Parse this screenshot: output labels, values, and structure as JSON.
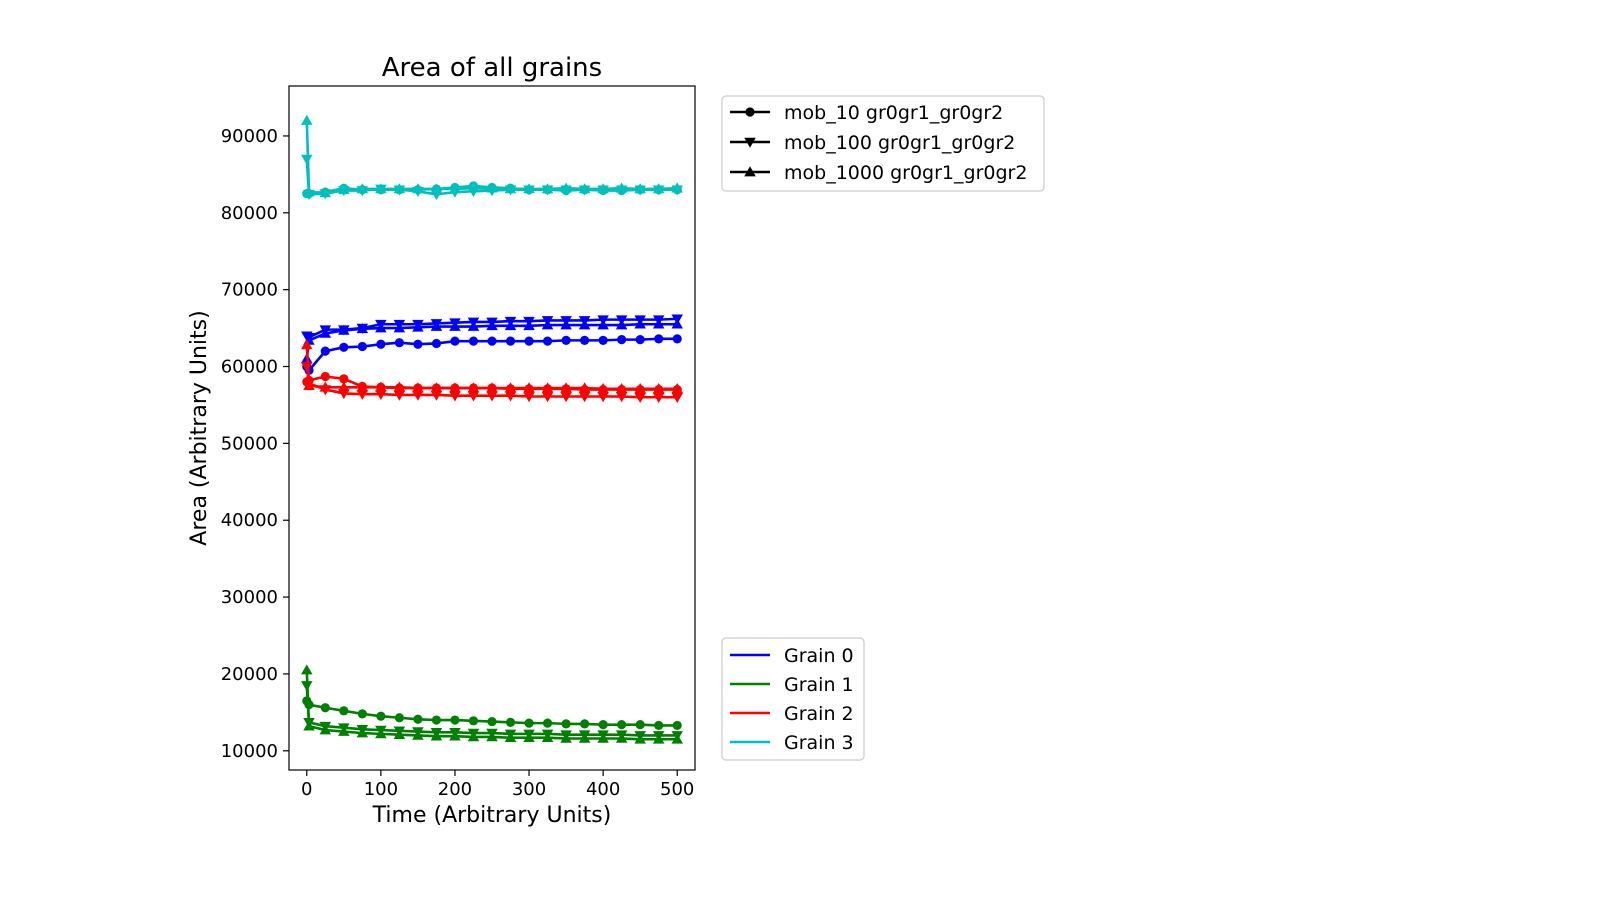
{
  "chart_data": {
    "type": "line",
    "title": "Area of all grains",
    "xlabel": "Time (Arbitrary Units)",
    "ylabel": "Area (Arbitrary Units)",
    "xlim": [
      -24,
      524
    ],
    "ylim": [
      7500,
      96500
    ],
    "xticks": [
      0,
      100,
      200,
      300,
      400,
      500
    ],
    "yticks": [
      10000,
      20000,
      30000,
      40000,
      50000,
      60000,
      70000,
      80000,
      90000
    ],
    "grid": false,
    "grain_legend_placement": "outside right, lower",
    "mobility_legend_placement": "outside right, upper",
    "grain_legend": [
      {
        "label": "Grain 0",
        "color": "#0000ff"
      },
      {
        "label": "Grain 1",
        "color": "#008000"
      },
      {
        "label": "Grain 2",
        "color": "#ff0000"
      },
      {
        "label": "Grain 3",
        "color": "#00bfbf"
      }
    ],
    "mobility_legend": [
      {
        "label": "mob_10 gr0gr1_gr0gr2",
        "marker": "circle"
      },
      {
        "label": "mob_100 gr0gr1_gr0gr2",
        "marker": "triangle-down"
      },
      {
        "label": "mob_1000 gr0gr1_gr0gr2",
        "marker": "triangle-up"
      }
    ],
    "x": [
      0,
      3,
      25,
      50,
      75,
      100,
      125,
      150,
      175,
      200,
      225,
      250,
      275,
      300,
      325,
      350,
      375,
      400,
      425,
      450,
      475,
      500
    ],
    "series": [
      {
        "grain": 0,
        "marker": "circle",
        "color": "#0000ff",
        "values": [
          60000,
          59500,
          62000,
          62500,
          62600,
          62900,
          63100,
          62900,
          63000,
          63300,
          63300,
          63300,
          63300,
          63300,
          63300,
          63400,
          63400,
          63400,
          63500,
          63500,
          63600,
          63600
        ]
      },
      {
        "grain": 0,
        "marker": "triangle-down",
        "color": "#0000ff",
        "values": [
          64000,
          63800,
          64800,
          64800,
          65000,
          65500,
          65500,
          65500,
          65600,
          65700,
          65800,
          65800,
          65900,
          65900,
          66000,
          66000,
          66000,
          66100,
          66100,
          66100,
          66100,
          66200
        ]
      },
      {
        "grain": 0,
        "marker": "triangle-up",
        "color": "#0000ff",
        "values": [
          61000,
          63400,
          64300,
          64700,
          64900,
          65000,
          65000,
          65100,
          65200,
          65200,
          65200,
          65300,
          65300,
          65300,
          65400,
          65400,
          65400,
          65400,
          65400,
          65500,
          65500,
          65500
        ]
      },
      {
        "grain": 1,
        "marker": "circle",
        "color": "#008000",
        "values": [
          16500,
          16000,
          15600,
          15200,
          14800,
          14500,
          14300,
          14100,
          14000,
          14000,
          13900,
          13800,
          13700,
          13600,
          13600,
          13500,
          13500,
          13400,
          13400,
          13400,
          13300,
          13300
        ]
      },
      {
        "grain": 1,
        "marker": "triangle-down",
        "color": "#008000",
        "values": [
          18500,
          13700,
          13200,
          13000,
          12800,
          12700,
          12600,
          12500,
          12400,
          12400,
          12300,
          12300,
          12200,
          12200,
          12200,
          12100,
          12100,
          12100,
          12100,
          12000,
          12000,
          12000
        ]
      },
      {
        "grain": 1,
        "marker": "triangle-up",
        "color": "#008000",
        "values": [
          20500,
          13200,
          12700,
          12500,
          12300,
          12200,
          12100,
          12000,
          11900,
          11900,
          11800,
          11800,
          11700,
          11700,
          11700,
          11600,
          11600,
          11600,
          11600,
          11500,
          11500,
          11500
        ]
      },
      {
        "grain": 2,
        "marker": "circle",
        "color": "#ff0000",
        "values": [
          58000,
          58200,
          58700,
          58400,
          57400,
          57300,
          57200,
          57200,
          57200,
          57200,
          57200,
          57200,
          57100,
          57100,
          57100,
          57100,
          57000,
          57000,
          57000,
          57000,
          57000,
          57000
        ]
      },
      {
        "grain": 2,
        "marker": "triangle-down",
        "color": "#ff0000",
        "values": [
          60000,
          57800,
          57000,
          56500,
          56400,
          56400,
          56300,
          56300,
          56300,
          56200,
          56200,
          56200,
          56200,
          56100,
          56100,
          56100,
          56100,
          56100,
          56100,
          56000,
          56000,
          56000
        ]
      },
      {
        "grain": 2,
        "marker": "triangle-up",
        "color": "#ff0000",
        "values": [
          62800,
          57500,
          57300,
          57300,
          57300,
          57300,
          57300,
          57200,
          57200,
          57200,
          57200,
          57200,
          57200,
          57200,
          57200,
          57200,
          57200,
          57100,
          57100,
          57100,
          57100,
          57100
        ]
      },
      {
        "grain": 3,
        "marker": "circle",
        "color": "#00bfbf",
        "values": [
          82500,
          82500,
          82700,
          83200,
          83000,
          83000,
          83000,
          83000,
          83100,
          83300,
          83500,
          83300,
          83200,
          83000,
          83000,
          82900,
          83000,
          82900,
          82900,
          83000,
          83000,
          83000
        ]
      },
      {
        "grain": 3,
        "marker": "triangle-down",
        "color": "#00bfbf",
        "values": [
          87000,
          82400,
          82500,
          82900,
          82900,
          83100,
          83000,
          82800,
          82400,
          82700,
          82800,
          82900,
          83000,
          83000,
          83000,
          83000,
          83000,
          83000,
          83000,
          83000,
          83000,
          83000
        ]
      },
      {
        "grain": 3,
        "marker": "triangle-up",
        "color": "#00bfbf",
        "values": [
          92000,
          82700,
          82600,
          83000,
          83100,
          83100,
          83100,
          83100,
          83100,
          83100,
          83200,
          83200,
          83100,
          83100,
          83100,
          83200,
          83100,
          83100,
          83200,
          83100,
          83100,
          83200
        ]
      }
    ]
  }
}
